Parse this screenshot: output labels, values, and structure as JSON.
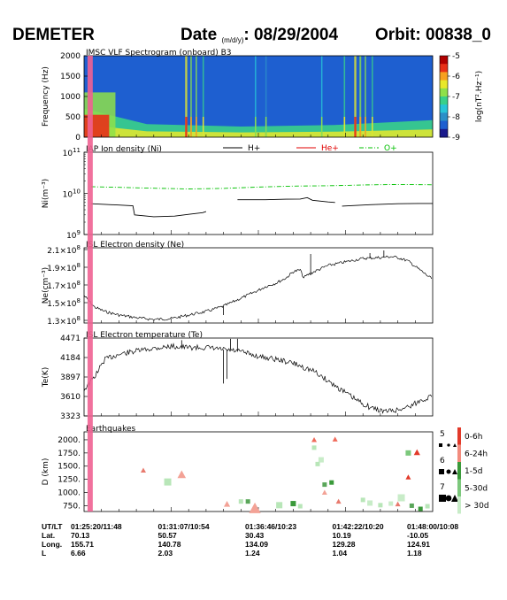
{
  "header": {
    "mission": "DEMETER",
    "date_label": "Date",
    "date_units": "(m/d/y)",
    "date_value": ": 08/29/2004",
    "orbit_label": "Orbit: 00838_0"
  },
  "colors": {
    "spectro_background": "#2a8fc8",
    "event_band": "#f06292",
    "h_plus": "#000000",
    "he_plus": "#e00000",
    "o_plus": "#00c000",
    "trace": "#000000"
  },
  "chart_data": [
    {
      "type": "heatmap",
      "title": "IMSC VLF Spectrogram (onboard) B3",
      "ylabel": "Frequency (Hz)",
      "ylim": [
        0,
        2000
      ],
      "y_ticks": [
        "0",
        "500",
        "1000",
        "1500",
        "2000"
      ],
      "colorbar_label": "log(nT².Hz⁻¹)",
      "colorbar_ticks": [
        "-5",
        "-6",
        "-7",
        "-8",
        "-9"
      ],
      "colorbar_range": [
        -9,
        -5
      ],
      "colormap": [
        "#1a1a8c",
        "#1e5fd0",
        "#2a8fc8",
        "#27c4d8",
        "#38d08a",
        "#8ee04a",
        "#e8e82a",
        "#f7a020",
        "#e83018",
        "#b00000"
      ],
      "background_level": -8.6,
      "low_freq_band": {
        "x_range": [
          0.0,
          1.0
        ],
        "freq_top": [
          [
            0.0,
            700
          ],
          [
            0.18,
            320
          ],
          [
            0.45,
            260
          ],
          [
            0.72,
            300
          ],
          [
            1.0,
            420
          ]
        ],
        "level": -7.3
      },
      "hot_region": {
        "x_range": [
          0.0,
          0.09
        ],
        "freq_top": 1100,
        "level": -5.6
      },
      "bursts": [
        {
          "x": 0.29,
          "width": 0.006,
          "level": -5.5
        },
        {
          "x": 0.305,
          "width": 0.004,
          "level": -6.0
        },
        {
          "x": 0.32,
          "width": 0.004,
          "level": -5.8
        },
        {
          "x": 0.34,
          "width": 0.003,
          "level": -6.3
        },
        {
          "x": 0.49,
          "width": 0.003,
          "level": -6.8
        },
        {
          "x": 0.52,
          "width": 0.003,
          "level": -6.9
        },
        {
          "x": 0.68,
          "width": 0.003,
          "level": -6.8
        },
        {
          "x": 0.745,
          "width": 0.004,
          "level": -6.2
        },
        {
          "x": 0.775,
          "width": 0.006,
          "level": -5.5
        },
        {
          "x": 0.79,
          "width": 0.005,
          "level": -5.7
        },
        {
          "x": 0.805,
          "width": 0.004,
          "level": -6.0
        },
        {
          "x": 0.825,
          "width": 0.003,
          "level": -6.4
        }
      ]
    },
    {
      "type": "line",
      "title": "IAP Ion density (Ni)",
      "ylabel": "Ni(m⁻³)",
      "yscale": "log",
      "ylim": [
        1000000000.0,
        100000000000.0
      ],
      "y_ticks": [
        {
          "base": "10",
          "exp": "9",
          "value": 1000000000.0
        },
        {
          "base": "10",
          "exp": "10",
          "value": 10000000000.0
        },
        {
          "base": "10",
          "exp": "11",
          "value": 100000000000.0
        }
      ],
      "legend": [
        "H+",
        "He+",
        "O+"
      ],
      "series": [
        {
          "name": "H+",
          "segments": [
            [
              [
                0.02,
                5600000000.0
              ],
              [
                0.1,
                5200000000.0
              ],
              [
                0.14,
                5000000000.0
              ],
              [
                0.145,
                3000000000.0
              ],
              [
                0.2,
                2700000000.0
              ],
              [
                0.26,
                2800000000.0
              ],
              [
                0.3,
                3100000000.0
              ],
              [
                0.34,
                3400000000.0
              ],
              [
                0.35,
                3600000000.0
              ]
            ],
            [
              [
                0.44,
                7000000000.0
              ],
              [
                0.52,
                7000000000.0
              ],
              [
                0.58,
                7200000000.0
              ],
              [
                0.62,
                7300000000.0
              ],
              [
                0.64,
                7900000000.0
              ],
              [
                0.655,
                6800000000.0
              ],
              [
                0.7,
                6200000000.0
              ],
              [
                0.72,
                6000000000.0
              ]
            ],
            [
              [
                0.74,
                4900000000.0
              ],
              [
                0.82,
                5300000000.0
              ],
              [
                0.9,
                5600000000.0
              ],
              [
                0.96,
                5700000000.0
              ],
              [
                1.0,
                5700000000.0
              ]
            ]
          ]
        },
        {
          "name": "O+",
          "segments": [
            [
              [
                0.02,
                14500000000.0
              ],
              [
                0.1,
                14000000000.0
              ],
              [
                0.2,
                13300000000.0
              ],
              [
                0.3,
                12800000000.0
              ],
              [
                0.4,
                13200000000.0
              ],
              [
                0.5,
                14200000000.0
              ],
              [
                0.6,
                15000000000.0
              ],
              [
                0.7,
                15300000000.0
              ],
              [
                0.8,
                16000000000.0
              ],
              [
                0.9,
                16500000000.0
              ],
              [
                1.0,
                16200000000.0
              ]
            ]
          ]
        }
      ]
    },
    {
      "type": "line",
      "title": "ISL Electron density (Ne)",
      "ylabel": "Ne(cm⁻³)",
      "ylim": [
        127000000.0,
        212000000.0
      ],
      "y_ticks": [
        {
          "mant": "1.3",
          "value": 130000000.0
        },
        {
          "mant": "1.5",
          "value": 150000000.0
        },
        {
          "mant": "1.7",
          "value": 170000000.0
        },
        {
          "mant": "1.9",
          "value": 190000000.0
        },
        {
          "mant": "2.1",
          "value": 210000000.0
        }
      ],
      "tick_multiplier": "×10",
      "tick_exponent": "8",
      "series": [
        {
          "name": "Ne",
          "points": [
            [
              0.0,
              158000000.0
            ],
            [
              0.03,
              145000000.0
            ],
            [
              0.06,
              140000000.0
            ],
            [
              0.1,
              136000000.0
            ],
            [
              0.15,
              133000000.0
            ],
            [
              0.2,
              131000000.0
            ],
            [
              0.25,
              132000000.0
            ],
            [
              0.3,
              136000000.0
            ],
            [
              0.35,
              140000000.0
            ],
            [
              0.4,
              146000000.0
            ],
            [
              0.45,
              155000000.0
            ],
            [
              0.5,
              164000000.0
            ],
            [
              0.52,
              168000000.0
            ],
            [
              0.55,
              172000000.0
            ],
            [
              0.58,
              178000000.0
            ],
            [
              0.6,
              185000000.0
            ],
            [
              0.62,
              187000000.0
            ],
            [
              0.63,
              178000000.0
            ],
            [
              0.64,
              181000000.0
            ],
            [
              0.66,
              185000000.0
            ],
            [
              0.7,
              192000000.0
            ],
            [
              0.75,
              196000000.0
            ],
            [
              0.8,
              200000000.0
            ],
            [
              0.85,
              201000000.0
            ],
            [
              0.88,
              202000000.0
            ],
            [
              0.9,
              201000000.0
            ],
            [
              0.93,
              197000000.0
            ],
            [
              0.96,
              188000000.0
            ],
            [
              1.0,
              176000000.0
            ]
          ]
        },
        {
          "name": "Ne spikes",
          "spikes": [
            [
              0.4,
              136000000.0
            ],
            [
              0.65,
              205000000.0
            ],
            [
              0.82,
              206000000.0
            ],
            [
              0.86,
              209000000.0
            ]
          ]
        }
      ]
    },
    {
      "type": "line",
      "title": "ISL Electron temperature (Te)",
      "ylabel": "Te(K)",
      "ylim": [
        3323,
        4471
      ],
      "y_ticks": [
        {
          "label": "3323",
          "value": 3323
        },
        {
          "label": "3610",
          "value": 3610
        },
        {
          "label": "3897",
          "value": 3897
        },
        {
          "label": "4184",
          "value": 4184
        },
        {
          "label": "4471",
          "value": 4471
        }
      ],
      "series": [
        {
          "name": "Te",
          "points": [
            [
              0.0,
              3710
            ],
            [
              0.03,
              3900
            ],
            [
              0.06,
              4160
            ],
            [
              0.1,
              4230
            ],
            [
              0.15,
              4280
            ],
            [
              0.2,
              4320
            ],
            [
              0.25,
              4350
            ],
            [
              0.3,
              4330
            ],
            [
              0.35,
              4330
            ],
            [
              0.4,
              4300
            ],
            [
              0.45,
              4270
            ],
            [
              0.5,
              4200
            ],
            [
              0.55,
              4160
            ],
            [
              0.6,
              4100
            ],
            [
              0.62,
              4060
            ],
            [
              0.66,
              3980
            ],
            [
              0.7,
              3840
            ],
            [
              0.74,
              3700
            ],
            [
              0.78,
              3560
            ],
            [
              0.82,
              3450
            ],
            [
              0.86,
              3390
            ],
            [
              0.9,
              3410
            ],
            [
              0.94,
              3480
            ],
            [
              0.97,
              3560
            ],
            [
              1.0,
              3620
            ]
          ]
        },
        {
          "name": "Te spikes",
          "spikes": [
            [
              0.4,
              3800
            ],
            [
              0.41,
              3870
            ],
            [
              0.42,
              4460
            ],
            [
              0.44,
              4460
            ],
            [
              0.28,
              4440
            ]
          ]
        }
      ]
    },
    {
      "type": "scatter",
      "title": "Earthquakes",
      "ylabel": "D (km)",
      "ylim": [
        640,
        2150
      ],
      "y_ticks": [
        {
          "label": "750.",
          "value": 750
        },
        {
          "label": "1000.",
          "value": 1000
        },
        {
          "label": "1250.",
          "value": 1250
        },
        {
          "label": "1500.",
          "value": 1500
        },
        {
          "label": "1750.",
          "value": 1750
        },
        {
          "label": "2000.",
          "value": 2000
        }
      ],
      "magnitude_legend": [
        {
          "label": "5",
          "size": "small"
        },
        {
          "label": "6",
          "size": "medium"
        },
        {
          "label": "7",
          "size": "large"
        }
      ],
      "time_legend": [
        {
          "label": "0-6h",
          "color": "#e23a2a"
        },
        {
          "label": "6-24h",
          "color": "#f28c7e"
        },
        {
          "label": "1-5d",
          "color": "#3a9a3a"
        },
        {
          "label": "5-30d",
          "color": "#7cc87c"
        },
        {
          "label": "> 30d",
          "color": "#c8ecc8"
        }
      ],
      "points": [
        {
          "x": 0.17,
          "y": 1420,
          "mark": "triangle",
          "color": "#e87a6e",
          "size": 5
        },
        {
          "x": 0.24,
          "y": 1200,
          "mark": "square",
          "color": "#b8e6b8",
          "size": 8
        },
        {
          "x": 0.28,
          "y": 1340,
          "mark": "triangle",
          "color": "#f3a296",
          "size": 8
        },
        {
          "x": 0.41,
          "y": 780,
          "mark": "triangle",
          "color": "#f3a296",
          "size": 6
        },
        {
          "x": 0.45,
          "y": 830,
          "mark": "square",
          "color": "#b8e6b8",
          "size": 5
        },
        {
          "x": 0.47,
          "y": 830,
          "mark": "square",
          "color": "#5aa65a",
          "size": 5
        },
        {
          "x": 0.49,
          "y": 700,
          "mark": "triangle",
          "color": "#f3a296",
          "size": 11
        },
        {
          "x": 0.56,
          "y": 760,
          "mark": "square",
          "color": "#b8e6b8",
          "size": 7
        },
        {
          "x": 0.6,
          "y": 790,
          "mark": "square",
          "color": "#3a9a3a",
          "size": 6
        },
        {
          "x": 0.62,
          "y": 740,
          "mark": "square",
          "color": "#b8e6b8",
          "size": 5
        },
        {
          "x": 0.66,
          "y": 2000,
          "mark": "triangle",
          "color": "#f06a5a",
          "size": 5
        },
        {
          "x": 0.66,
          "y": 1850,
          "mark": "square",
          "color": "#b8e6b8",
          "size": 5
        },
        {
          "x": 0.68,
          "y": 1620,
          "mark": "square",
          "color": "#c8ecc8",
          "size": 6
        },
        {
          "x": 0.67,
          "y": 1540,
          "mark": "square",
          "color": "#b8e6b8",
          "size": 5
        },
        {
          "x": 0.69,
          "y": 1150,
          "mark": "square",
          "color": "#5aa65a",
          "size": 5
        },
        {
          "x": 0.71,
          "y": 1190,
          "mark": "square",
          "color": "#3a9a3a",
          "size": 5
        },
        {
          "x": 0.69,
          "y": 1000,
          "mark": "triangle",
          "color": "#f3a296",
          "size": 5
        },
        {
          "x": 0.73,
          "y": 830,
          "mark": "triangle",
          "color": "#e87a6e",
          "size": 5
        },
        {
          "x": 0.72,
          "y": 2010,
          "mark": "triangle",
          "color": "#f06a5a",
          "size": 5
        },
        {
          "x": 0.8,
          "y": 860,
          "mark": "square",
          "color": "#b8e6b8",
          "size": 5
        },
        {
          "x": 0.82,
          "y": 800,
          "mark": "square",
          "color": "#c8ecc8",
          "size": 6
        },
        {
          "x": 0.85,
          "y": 760,
          "mark": "square",
          "color": "#b8e6b8",
          "size": 5
        },
        {
          "x": 0.88,
          "y": 790,
          "mark": "square",
          "color": "#c8ecc8",
          "size": 5
        },
        {
          "x": 0.9,
          "y": 780,
          "mark": "triangle",
          "color": "#e87a6e",
          "size": 5
        },
        {
          "x": 0.91,
          "y": 900,
          "mark": "square",
          "color": "#c8ecc8",
          "size": 8
        },
        {
          "x": 0.93,
          "y": 1290,
          "mark": "triangle",
          "color": "#e23a2a",
          "size": 5
        },
        {
          "x": 0.93,
          "y": 1750,
          "mark": "square",
          "color": "#7cc87c",
          "size": 6
        },
        {
          "x": 0.955,
          "y": 1760,
          "mark": "triangle",
          "color": "#e23a2a",
          "size": 6
        },
        {
          "x": 0.94,
          "y": 750,
          "mark": "square",
          "color": "#5aa65a",
          "size": 5
        },
        {
          "x": 0.965,
          "y": 690,
          "mark": "square",
          "color": "#3a9a3a",
          "size": 5
        },
        {
          "x": 0.985,
          "y": 740,
          "mark": "square",
          "color": "#b8e6b8",
          "size": 5
        }
      ]
    }
  ],
  "event_band": {
    "x_range": [
      0.01,
      0.025
    ]
  },
  "footer": {
    "labels": [
      "UT/LT",
      "Lat.",
      "Long.",
      "L"
    ],
    "columns": [
      {
        "x": 0.0,
        "utlt": "01:25:20/11:48",
        "lat": "70.13",
        "long": "155.71",
        "l": "6.66"
      },
      {
        "x": 0.25,
        "utlt": "01:31:07/10:54",
        "lat": "50.57",
        "long": "140.78",
        "l": "2.03"
      },
      {
        "x": 0.5,
        "utlt": "01:36:46/10:23",
        "lat": "30.43",
        "long": "134.09",
        "l": "1.24"
      },
      {
        "x": 0.75,
        "utlt": "01:42:22/10:20",
        "lat": "10.19",
        "long": "129.28",
        "l": "1.04"
      },
      {
        "x": 1.0,
        "utlt": "01:48:00/10:08",
        "lat": "-10.05",
        "long": "124.91",
        "l": "1.18"
      }
    ]
  }
}
